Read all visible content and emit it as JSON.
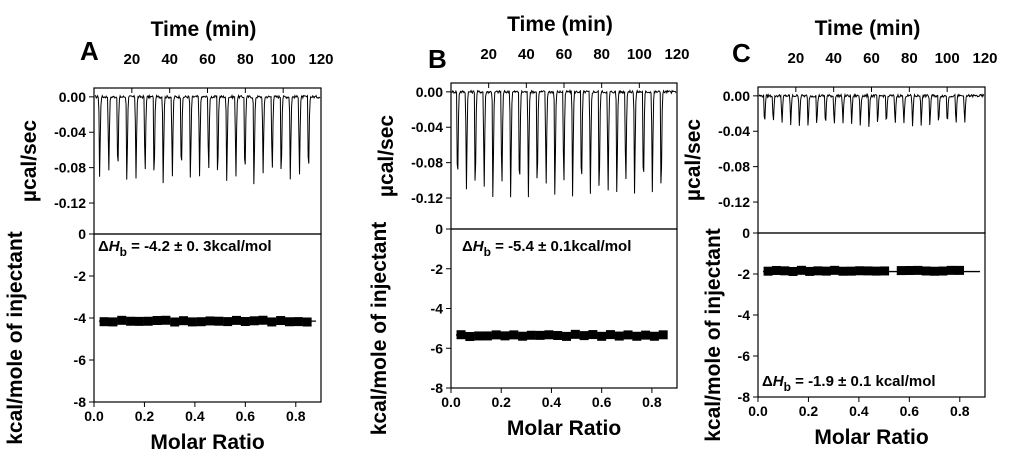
{
  "chart_data": [
    {
      "panel_label": "A",
      "type": "line",
      "top_axis_label": "Time (min)",
      "top_ticks": [
        20,
        40,
        60,
        80,
        100,
        120
      ],
      "xlim_time": [
        0,
        120
      ],
      "upper_ylabel": "µcal/sec",
      "upper_ylim": [
        -0.155,
        0.01
      ],
      "upper_yticks": [
        "0.00",
        "-0.04",
        "-0.08",
        "-0.12"
      ],
      "injections": {
        "count": 24,
        "start_min": 2.5,
        "interval_min": 4.8,
        "peak_min": -0.095
      },
      "lower_ylabel": "kcal/mole of injectant",
      "lower_ylim": [
        -8,
        0
      ],
      "lower_yticks": [
        0,
        -2,
        -4,
        -6,
        -8
      ],
      "xlabel": "Molar Ratio",
      "xlim": [
        0,
        0.9
      ],
      "xticks": [
        "0.0",
        "0.2",
        "0.4",
        "0.6",
        "0.8"
      ],
      "annotation": {
        "prefix": "Δ",
        "symbol": "H",
        "sub": "b",
        "text": " = -4.2 ± 0. 3kcal/mol"
      },
      "points": {
        "x_start": 0.04,
        "x_step": 0.035,
        "count": 24,
        "y_mean": -4.15,
        "jitter": 0.05
      },
      "fit": {
        "x": [
          0.02,
          0.88
        ],
        "y": -4.15
      }
    },
    {
      "panel_label": "B",
      "type": "line",
      "top_axis_label": "Time (min)",
      "top_ticks": [
        20,
        40,
        60,
        80,
        100,
        120
      ],
      "xlim_time": [
        0,
        120
      ],
      "upper_ylabel": "µcal/sec",
      "upper_ylim": [
        -0.155,
        0.01
      ],
      "upper_yticks": [
        "0.00",
        "-0.04",
        "-0.08",
        "-0.12"
      ],
      "injections": {
        "count": 24,
        "start_min": 3,
        "interval_min": 4.7,
        "peak_min": -0.118
      },
      "lower_ylabel": "kcal/mole of injectant",
      "lower_ylim": [
        -8,
        0
      ],
      "lower_yticks": [
        0,
        -2,
        -4,
        -6,
        -8
      ],
      "xlabel": "Molar Ratio",
      "xlim": [
        0,
        0.9
      ],
      "xticks": [
        "0.0",
        "0.2",
        "0.4",
        "0.6",
        "0.8"
      ],
      "annotation": {
        "prefix": "Δ",
        "symbol": "H",
        "sub": "b",
        "text": " = -5.4 ± 0.1kcal/mol"
      },
      "points": {
        "x_start": 0.04,
        "x_step": 0.035,
        "count": 24,
        "y_mean": -5.35,
        "jitter": 0.06
      },
      "fit": {
        "x": [
          0.02,
          0.86
        ],
        "y": -5.33
      }
    },
    {
      "panel_label": "C",
      "type": "line",
      "top_axis_label": "Time (min)",
      "top_ticks": [
        20,
        40,
        60,
        80,
        100,
        120
      ],
      "xlim_time": [
        0,
        120
      ],
      "upper_ylabel": "µcal/sec",
      "upper_ylim": [
        -0.155,
        0.01
      ],
      "upper_yticks": [
        "0.00",
        "-0.04",
        "-0.08",
        "-0.12"
      ],
      "injections": {
        "count": 24,
        "start_min": 3,
        "interval_min": 4.6,
        "peak_min": -0.034
      },
      "lower_ylabel": "kcal/mole of injectant",
      "lower_ylim": [
        -8,
        0
      ],
      "lower_yticks": [
        0,
        -2,
        -4,
        -6,
        -8
      ],
      "xlabel": "Molar Ratio",
      "xlim": [
        0,
        0.9
      ],
      "xticks": [
        "0.0",
        "0.2",
        "0.4",
        "0.6",
        "0.8"
      ],
      "annotation": {
        "prefix": "Δ",
        "symbol": "H",
        "sub": "b",
        "text": " = -1.9 ± 0.1 kcal/mol"
      },
      "points": {
        "x_start": 0.04,
        "x_step": 0.033,
        "count": 24,
        "y_mean": -1.85,
        "jitter": 0.03
      },
      "fit": {
        "x": [
          0.02,
          0.88
        ],
        "y": -1.88
      }
    }
  ]
}
